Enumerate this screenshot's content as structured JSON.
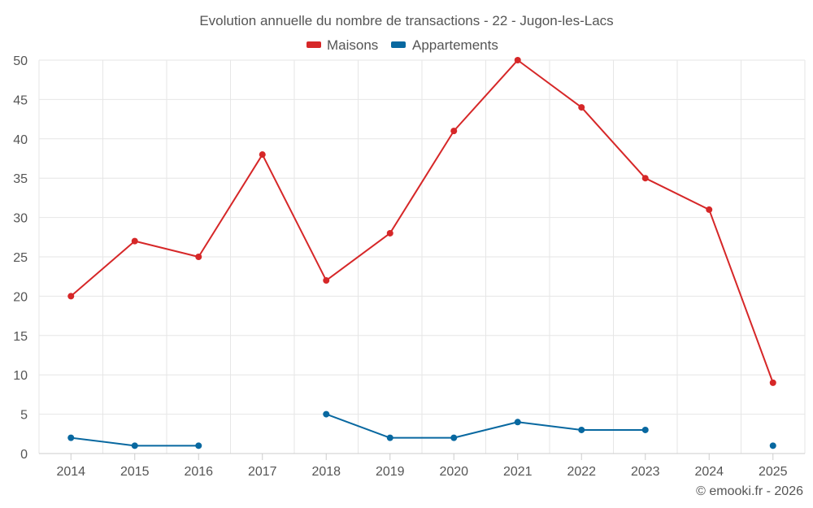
{
  "chart_data": {
    "type": "line",
    "title": "Evolution annuelle du nombre de transactions - 22 - Jugon-les-Lacs",
    "categories": [
      "2014",
      "2015",
      "2016",
      "2017",
      "2018",
      "2019",
      "2020",
      "2021",
      "2022",
      "2023",
      "2024",
      "2025"
    ],
    "series": [
      {
        "name": "Maisons",
        "color": "#d62728",
        "values": [
          20,
          27,
          25,
          38,
          22,
          28,
          41,
          50,
          44,
          35,
          31,
          9
        ]
      },
      {
        "name": "Appartements",
        "color": "#0868a0",
        "values": [
          2,
          1,
          1,
          null,
          5,
          2,
          2,
          4,
          3,
          3,
          null,
          1
        ]
      }
    ],
    "ylim": [
      0,
      50
    ],
    "yticks": [
      0,
      5,
      10,
      15,
      20,
      25,
      30,
      35,
      40,
      45,
      50
    ],
    "xlabel": "",
    "ylabel": "",
    "grid": true,
    "legend": "top-center"
  },
  "credit": "© emooki.fr - 2026"
}
